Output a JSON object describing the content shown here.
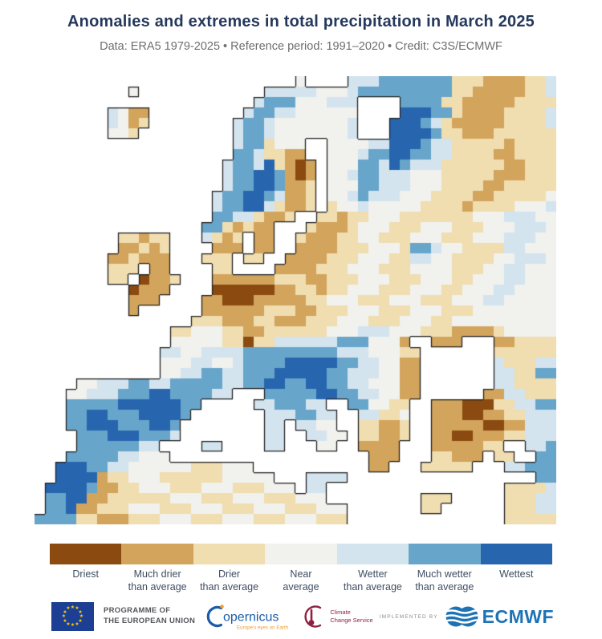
{
  "header": {
    "title": "Anomalies and extremes in total precipitation in March 2025",
    "subtitle": "Data: ERA5 1979-2025 • Reference period: 1991–2020 • Credit: C3S/ECMWF"
  },
  "legend": {
    "items": [
      {
        "label": "Driest",
        "color": "#8a4a10"
      },
      {
        "label": "Much drier\nthan average",
        "color": "#d2a45c"
      },
      {
        "label": "Drier\nthan average",
        "color": "#f0ddb0"
      },
      {
        "label": "Near\naverage",
        "color": "#f1f1ee"
      },
      {
        "label": "Wetter\nthan average",
        "color": "#d3e4ef"
      },
      {
        "label": "Much wetter\nthan average",
        "color": "#68a5ca"
      },
      {
        "label": "Wettest",
        "color": "#2766af"
      }
    ]
  },
  "map": {
    "palette": {
      ".": "#ffffff",
      "n": "#f1f1ee",
      "d": "#f0ddb0",
      "M": "#d2a45c",
      "D": "#8a4a10",
      "w": "#d3e4ef",
      "W": "#68a5ca",
      "X": "#2766af"
    },
    "coast_color": "#1c1c1c",
    "grid": [
      ".........................n....wwwWWWWWWWdddMMMMddw",
      ".........n............wwwwwnnnwWWWWWWWWWddMMMMMddw",
      ".....................wWWWnnnwww....WWWWddMMMMMdddd",
      ".......wnMM.........wWWwwnnnnnn....XXXWWdMMMMddddw",
      ".......wnMd........wWWwnnnnnnnw...XXXWwdMMMMMddddw",
      ".......nnd.........wWWwnnnnnnnw...XXXXWddMMMdddddd",
      "...................wWWdnnn..nnnnwwXXXWwwdddddMdddd",
      "...................WWwddMM..nnnwWWXXWWwwddddMMdddd",
      "..................wWWwXdMDM.nnnWWwXWwwwddddddMMddd",
      "..................wWWXXWMDM.nnwWWwwwnnndddddMMMddd",
      "..................wWWXXWMMd.nnnWWwwwnnnddddMMddddd",
      ".................wWWXXWwMMd.nnwWwwwnnnddddMMdddddn",
      ".................wWWXXwdMMd.dnnwnnnnnddddMddddnnnw",
      ".................WWwwdMMd..ddMddnnndddddddnnnwwwnn",
      "................WWdMdMM...dMMMdnnndddnnndddnnnwwwn",
      "........ddMdd...wdMd.MM..dMMMddnndddnnndddnnnwwwnn",
      "........MMdMd....MMM.MM..MMMMdddnnndWWwnnddddwwnnn",
      ".......MMdMMM...ddd.dd..MMMMdddnnnddwwnnddddnnwwwn",
      ".......ddd.MM....dd....MMMMdddnnndddnnnndddnnwwnnn",
      ".......dd.DMMd...MMMMMMdddMMdddnnndddnnnddnnnwwnnn",
      ".........DMMM....DDDDDDMMddMddnnndddnnnddnnnwwnnnn",
      ".........MMM....MMDDDMMMMMddnnndddnnndddnnnwwnnnnn",
      ".........M......MMMMMMdddMMdddnnndddnnndddnnnnnnnn",
      "...............dddMMMddMMMdddnnndddnnnddnnnnnnnnnn",
      ".............ddnnnddMMddddddnnnwwwnnndddMMMMdnnnnn",
      ".............nnnnnddDddwwwwwwWWWnnnM..MMM...MMdddd",
      "............wwnnwwwwWWWWWWWWWwwwnnndd.......dddddd",
      "............nnnwwnnwWWWWXXXXXWWwwnnMM.......wdddww",
      "............nnwwWWwwWWWXXXXXWWwwwnnMM.......wwddWW",
      "....nnwwwWWwwWWWWWwwWWXXWWXXWWwwnnnMM.......wwdddd",
      "...nnwwwWWWXXWWWWww...WWWWWXXWWwwnnMM......MMwwddd",
      "...WWWWWXXXXXXWW.....wwWWWww..WWnndd..MMMDDDddwwWW",
      "...WWXXWWWXXXXW.......wwwWWww..wwddn..MMMDDMMddwww",
      "...WWXXXWWWXXW........ww.wwnn..ddMMd..MMMMMDDMMwww",
      "....WWWXXXWWWw........ww..wwnn.ddMMd..MMDDMMMddwww",
      "....WWWWWWww....ww....ww...nn..MMMM...MMMMMdd..wwW",
      "...WWWWWwwnnn...................MMM...ddMMM.dd..WW",
      "..XXXWWwwnnnnnndddnnn...........MM...ddddd...wwWWW",
      "..XXXXMddnnnddddddnnnnn...wwww..................WW",
      ".XXXXWMMddnnndddnnndddnnn.ww.................ddddw",
      ".WWXXMMddddddnnndddnnndddnnn.........ddd.....dddww",
      ".WWXMMdddnnndddnnndddnnndddnnn.......dd......dddww",
      "WWWWddMMMdddnnndddnnndddnnnddd...............ddddd"
    ]
  },
  "footer": {
    "eu": {
      "label": "PROGRAMME OF\nTHE EUROPEAN UNION",
      "flag_blue": "#1c3f94",
      "star_gold": "#ffcc00"
    },
    "copernicus": {
      "wordmark": "opernicus",
      "tagline": "Europe's eyes on Earth",
      "blue": "#1a5ca8",
      "orange": "#ee9d2a"
    },
    "c3s": {
      "label": "Climate\nChange Service",
      "red": "#8e2040"
    },
    "implemented_by": "IMPLEMENTED BY",
    "ecmwf": {
      "wordmark": "ECMWF",
      "blue": "#1e73b5"
    }
  }
}
